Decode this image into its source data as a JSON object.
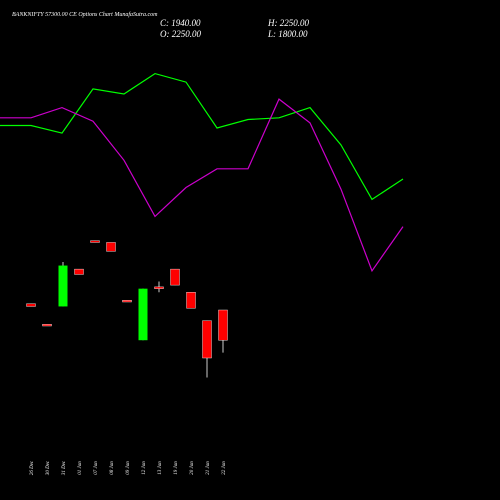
{
  "chart_data": {
    "type": "candlestick",
    "title": "BANKNIFTY 57300.00 CE Options Chart MunafaSutra.com",
    "ohlc_summary": {
      "open": "O: 2250.00",
      "high": "H: 2250.00",
      "low": "L: 1800.00",
      "close": "C: 1940.00"
    },
    "categories": [
      "26 Dec",
      "30 Dec",
      "31 Dec",
      "01 Jan",
      "07 Jan",
      "08 Jan",
      "09 Jan",
      "12 Jan",
      "13 Jan",
      "19 Jan",
      "20 Jan",
      "21 Jan",
      "22 Jan"
    ],
    "candles": [
      {
        "open": 2885,
        "high": 2885,
        "low": 2870,
        "close": 2870
      },
      {
        "open": 2770,
        "high": 2770,
        "low": 2760,
        "close": 2760
      },
      {
        "open": 2870,
        "high": 3120,
        "low": 2870,
        "close": 3100
      },
      {
        "open": 3080,
        "high": 3080,
        "low": 3050,
        "close": 3050
      },
      {
        "open": 3240,
        "high": 3240,
        "low": 3230,
        "close": 3230
      },
      {
        "open": 3230,
        "high": 3230,
        "low": 3180,
        "close": 3180
      },
      {
        "open": 2905,
        "high": 2905,
        "low": 2895,
        "close": 2895
      },
      {
        "open": 2680,
        "high": 2970,
        "low": 2680,
        "close": 2970
      },
      {
        "open": 2980,
        "high": 3010,
        "low": 2950,
        "close": 2970
      },
      {
        "open": 3080,
        "high": 3080,
        "low": 2990,
        "close": 2990
      },
      {
        "open": 2950,
        "high": 2950,
        "low": 2860,
        "close": 2860
      },
      {
        "open": 2790,
        "high": 2790,
        "low": 2470,
        "close": 2580
      },
      {
        "open": 2850,
        "high": 2850,
        "low": 2610,
        "close": 2680
      }
    ],
    "candle_range": [
      2400,
      3300
    ],
    "line_series": [
      {
        "color": "#00ff00",
        "values": [
          0.615,
          0.615,
          0.57,
          0.83,
          0.8,
          0.92,
          0.87,
          0.6,
          0.65,
          0.66,
          0.72,
          0.5,
          0.18,
          0.3
        ]
      },
      {
        "color": "#cc00cc",
        "values": [
          0.66,
          0.66,
          0.72,
          0.64,
          0.41,
          0.08,
          0.25,
          0.36,
          0.36,
          0.77,
          0.63,
          0.24,
          -0.24,
          0.02
        ]
      }
    ],
    "colors": {
      "background": "#000000",
      "up": "#00ff00",
      "down": "#ff0000",
      "down_border": "#ffffff",
      "text": "#ffffff"
    }
  }
}
